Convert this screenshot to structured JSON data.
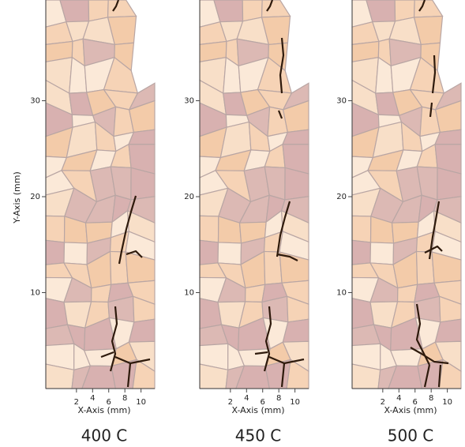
{
  "y_label": "Y-Axis (mm)",
  "panels": [
    {
      "title": "400 C",
      "x_label": "X-Axis (mm)",
      "xlim": [
        -1.8,
        11.7
      ],
      "ylim": [
        0,
        40.5
      ],
      "xticks": [
        2,
        4,
        6,
        8,
        10
      ],
      "yticks": [
        10,
        20,
        30
      ]
    },
    {
      "title": "450 C",
      "x_label": "X-Axis (mm)",
      "xlim": [
        -1.8,
        11.7
      ],
      "ylim": [
        0,
        40.5
      ],
      "xticks": [
        2,
        4,
        6,
        8,
        10
      ],
      "yticks": [
        10,
        20,
        30
      ]
    },
    {
      "title": "500 C",
      "x_label": "X-Axis (mm)",
      "xlim": [
        -1.8,
        11.7
      ],
      "ylim": [
        0,
        40.5
      ],
      "xticks": [
        2,
        4,
        6,
        8,
        10
      ],
      "yticks": [
        10,
        20,
        30
      ]
    }
  ]
}
